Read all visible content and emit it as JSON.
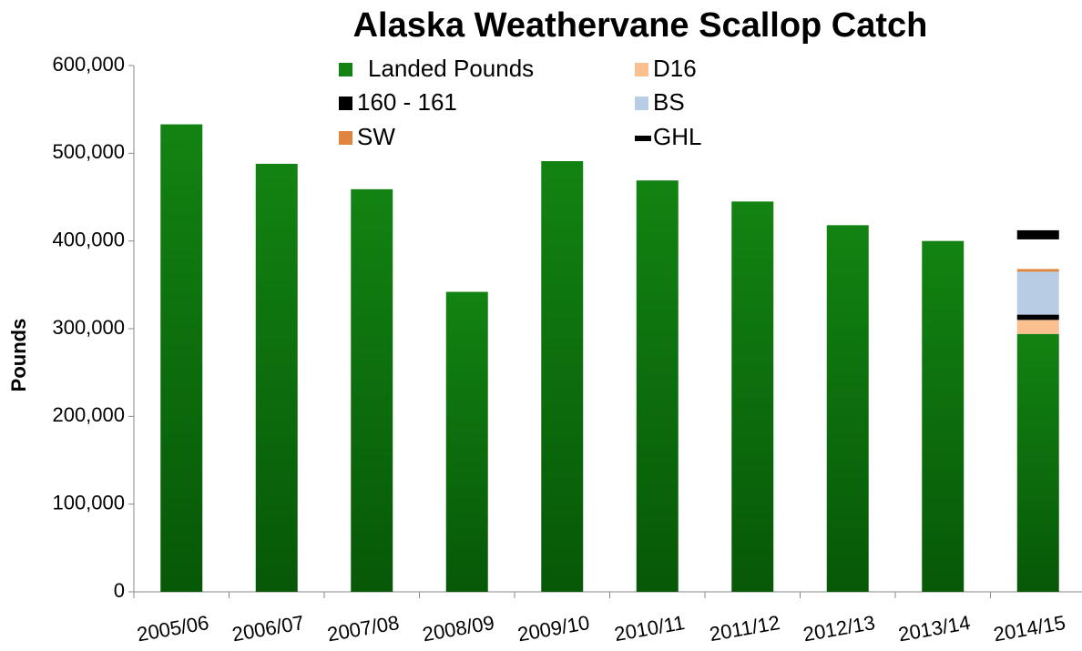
{
  "chart_data": {
    "type": "stacked_bar",
    "title": "Alaska Weathervane Scallop Catch",
    "y_label": "Pounds",
    "categories": [
      "2005/06",
      "2006/07",
      "2007/08",
      "2008/09",
      "2009/10",
      "2010/11",
      "2011/12",
      "2012/13",
      "2013/14",
      "2014/15"
    ],
    "series": [
      {
        "name": "Landed Pounds",
        "color": "#128312",
        "values": [
          533000,
          488000,
          459000,
          342000,
          491000,
          469000,
          445000,
          418000,
          400000,
          294000
        ]
      },
      {
        "name": "D16",
        "color": "#fac090",
        "values": [
          null,
          null,
          null,
          null,
          null,
          null,
          null,
          null,
          null,
          16000
        ]
      },
      {
        "name": "160 - 161",
        "color": "#000000",
        "values": [
          null,
          null,
          null,
          null,
          null,
          null,
          null,
          null,
          null,
          6000
        ]
      },
      {
        "name": "BS",
        "color": "#b8cce4",
        "values": [
          null,
          null,
          null,
          null,
          null,
          null,
          null,
          null,
          null,
          49000
        ]
      },
      {
        "name": "SW",
        "color": "#e0853f",
        "values": [
          null,
          null,
          null,
          null,
          null,
          null,
          null,
          null,
          null,
          3000
        ]
      },
      {
        "name": "GHL",
        "type": "marker",
        "color": "#000000",
        "values": [
          null,
          null,
          null,
          null,
          null,
          null,
          null,
          null,
          null,
          407000
        ]
      }
    ],
    "ylim": [
      0,
      600000
    ],
    "yticks": [
      0,
      {
        "value": 100000,
        "label": "100,000"
      },
      {
        "value": 200000,
        "label": "200,000"
      },
      {
        "value": 300000,
        "label": "300,000"
      },
      {
        "value": 400000,
        "label": "400,000"
      },
      {
        "value": 500000,
        "label": "500,000"
      },
      {
        "value": 600000,
        "label": "600,000"
      }
    ]
  }
}
